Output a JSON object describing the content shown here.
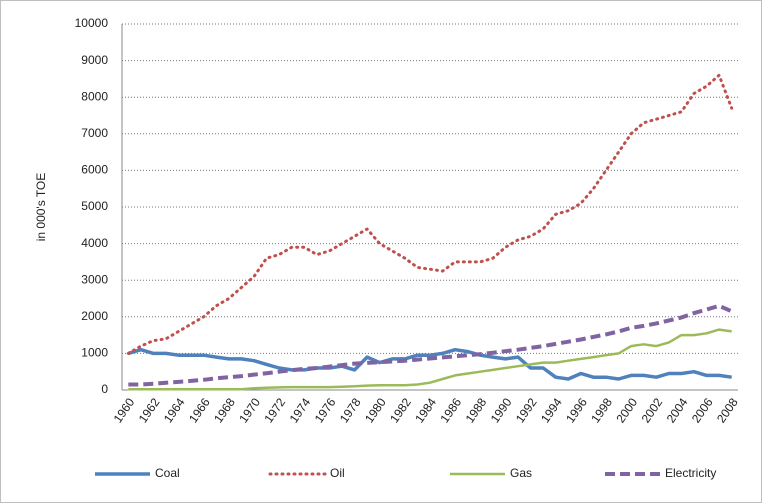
{
  "chart_data": {
    "type": "line",
    "y_label": "in 000's TOE",
    "categories": [
      "1960",
      null,
      "1962",
      null,
      "1964",
      null,
      "1966",
      null,
      "1968",
      null,
      "1970",
      null,
      "1972",
      null,
      "1974",
      null,
      "1976",
      null,
      "1978",
      null,
      "1980",
      null,
      "1982",
      null,
      "1984",
      null,
      "1986",
      null,
      "1988",
      null,
      "1990",
      null,
      "1992",
      null,
      "1994",
      null,
      "1996",
      null,
      "1998",
      null,
      "2000",
      null,
      "2002",
      null,
      "2004",
      null,
      "2006",
      null,
      "2008"
    ],
    "series": [
      {
        "name": "Coal",
        "color": "#4f81bd",
        "style": "solid",
        "values": [
          1000,
          1100,
          1000,
          1000,
          950,
          950,
          950,
          900,
          850,
          850,
          800,
          700,
          600,
          550,
          550,
          600,
          600,
          650,
          550,
          900,
          750,
          850,
          850,
          950,
          950,
          1000,
          1100,
          1050,
          950,
          900,
          850,
          900,
          600,
          600,
          350,
          300,
          450,
          350,
          350,
          300,
          400,
          400,
          350,
          450,
          450,
          500,
          400,
          400,
          350
        ]
      },
      {
        "name": "Oil",
        "color": "#c0504d",
        "style": "dotted",
        "values": [
          1000,
          1200,
          1350,
          1400,
          1600,
          1800,
          2000,
          2300,
          2500,
          2800,
          3100,
          3600,
          3700,
          3900,
          3900,
          3700,
          3800,
          4000,
          4200,
          4400,
          4000,
          3800,
          3600,
          3350,
          3300,
          3250,
          3500,
          3500,
          3500,
          3600,
          3900,
          4100,
          4200,
          4400,
          4800,
          4900,
          5100,
          5500,
          6000,
          6500,
          7000,
          7300,
          7400,
          7500,
          7600,
          8100,
          8300,
          8600,
          7700
        ]
      },
      {
        "name": "Gas",
        "color": "#9bbb59",
        "style": "double",
        "values": [
          20,
          20,
          20,
          20,
          20,
          20,
          20,
          20,
          20,
          20,
          50,
          60,
          70,
          80,
          80,
          80,
          80,
          90,
          100,
          120,
          130,
          130,
          130,
          150,
          200,
          300,
          400,
          450,
          500,
          550,
          600,
          650,
          700,
          750,
          750,
          800,
          850,
          900,
          950,
          1000,
          1200,
          1250,
          1200,
          1300,
          1500,
          1500,
          1550,
          1650,
          1600
        ]
      },
      {
        "name": "Electricity",
        "color": "#8064a2",
        "style": "dashed",
        "values": [
          150,
          150,
          170,
          200,
          220,
          250,
          280,
          320,
          350,
          380,
          420,
          460,
          500,
          540,
          580,
          600,
          640,
          680,
          720,
          740,
          760,
          780,
          800,
          830,
          860,
          890,
          920,
          950,
          980,
          1020,
          1060,
          1100,
          1150,
          1200,
          1260,
          1320,
          1380,
          1450,
          1520,
          1600,
          1700,
          1750,
          1820,
          1900,
          1980,
          2100,
          2200,
          2300,
          2150
        ]
      }
    ],
    "ylim": [
      0,
      10000
    ],
    "yticks": [
      0,
      1000,
      2000,
      3000,
      4000,
      5000,
      6000,
      7000,
      8000,
      9000,
      10000
    ],
    "grid": true,
    "legend": "bottom"
  }
}
